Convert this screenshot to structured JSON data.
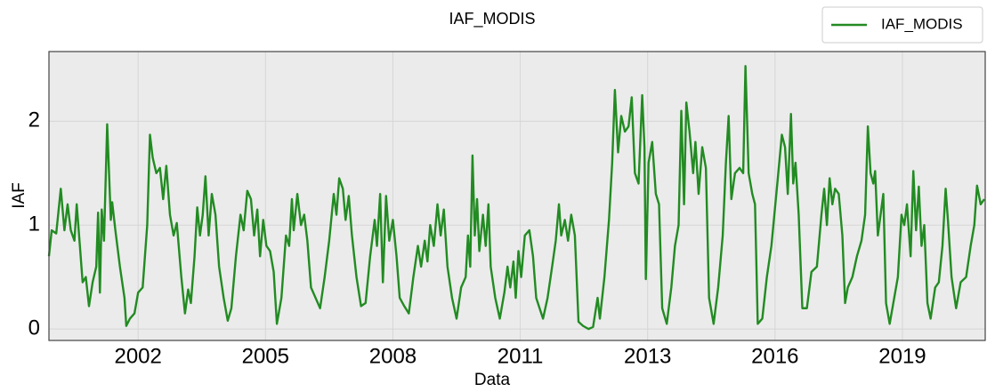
{
  "chart_data": {
    "type": "line",
    "title": "IAF_MODIS",
    "xlabel": "Data",
    "ylabel": "IAF",
    "x": [
      2000.24,
      2000.3,
      2000.4,
      2000.5,
      2000.58,
      2000.65,
      2000.72,
      2000.8,
      2000.85,
      2000.92,
      2000.98,
      2001.05,
      2001.12,
      2001.2,
      2001.28,
      2001.32,
      2001.36,
      2001.4,
      2001.45,
      2001.52,
      2001.6,
      2001.63,
      2001.7,
      2001.8,
      2001.9,
      2001.94,
      2002.02,
      2002.12,
      2002.2,
      2002.3,
      2002.4,
      2002.46,
      2002.52,
      2002.6,
      2002.68,
      2002.75,
      2002.82,
      2002.9,
      2002.98,
      2003.05,
      2003.15,
      2003.23,
      2003.3,
      2003.36,
      2003.44,
      2003.5,
      2003.56,
      2003.62,
      2003.68,
      2003.75,
      2003.82,
      2003.9,
      2003.98,
      2004.08,
      2004.17,
      2004.25,
      2004.35,
      2004.45,
      2004.52,
      2004.6,
      2004.68,
      2004.75,
      2004.82,
      2004.88,
      2004.95,
      2005.02,
      2005.1,
      2005.18,
      2005.25,
      2005.35,
      2005.45,
      2005.52,
      2005.58,
      2005.62,
      2005.7,
      2005.78,
      2005.85,
      2005.92,
      2006.0,
      2006.1,
      2006.2,
      2006.3,
      2006.4,
      2006.5,
      2006.56,
      2006.62,
      2006.7,
      2006.76,
      2006.83,
      2006.9,
      2007.0,
      2007.1,
      2007.2,
      2007.3,
      2007.4,
      2007.45,
      2007.52,
      2007.58,
      2007.65,
      2007.72,
      2007.8,
      2007.88,
      2007.95,
      2008.05,
      2008.15,
      2008.25,
      2008.35,
      2008.42,
      2008.5,
      2008.56,
      2008.62,
      2008.7,
      2008.78,
      2008.85,
      2008.92,
      2009.0,
      2009.1,
      2009.2,
      2009.3,
      2009.4,
      2009.45,
      2009.5,
      2009.55,
      2009.6,
      2009.65,
      2009.7,
      2009.78,
      2009.84,
      2009.9,
      2009.95,
      2010.05,
      2010.15,
      2010.25,
      2010.32,
      2010.38,
      2010.45,
      2010.5,
      2010.56,
      2010.62,
      2010.7,
      2010.8,
      2010.88,
      2010.95,
      2011.1,
      2011.2,
      2011.3,
      2011.38,
      2011.45,
      2011.5,
      2011.58,
      2011.65,
      2011.72,
      2011.8,
      2011.88,
      2011.98,
      2012.1,
      2012.2,
      2012.3,
      2012.35,
      2012.45,
      2012.55,
      2012.62,
      2012.68,
      2012.75,
      2012.82,
      2012.9,
      2012.98,
      2013.05,
      2013.12,
      2013.2,
      2013.28,
      2013.33,
      2013.36,
      2013.42,
      2013.5,
      2013.58,
      2013.65,
      2013.72,
      2013.82,
      2013.92,
      2014.0,
      2014.08,
      2014.14,
      2014.2,
      2014.25,
      2014.32,
      2014.4,
      2014.45,
      2014.52,
      2014.6,
      2014.68,
      2014.75,
      2014.85,
      2014.95,
      2015.05,
      2015.12,
      2015.18,
      2015.24,
      2015.32,
      2015.42,
      2015.5,
      2015.55,
      2015.62,
      2015.7,
      2015.76,
      2015.82,
      2015.92,
      2016.02,
      2016.12,
      2016.25,
      2016.35,
      2016.42,
      2016.48,
      2016.55,
      2016.6,
      2016.65,
      2016.72,
      2016.8,
      2016.9,
      2017.0,
      2017.12,
      2017.22,
      2017.28,
      2017.34,
      2017.4,
      2017.46,
      2017.52,
      2017.6,
      2017.68,
      2017.74,
      2017.8,
      2017.9,
      2018.0,
      2018.1,
      2018.18,
      2018.24,
      2018.3,
      2018.36,
      2018.4,
      2018.46,
      2018.52,
      2018.58,
      2018.64,
      2018.72,
      2018.82,
      2018.9,
      2018.98,
      2019.04,
      2019.1,
      2019.18,
      2019.24,
      2019.3,
      2019.36,
      2019.42,
      2019.48,
      2019.55,
      2019.62,
      2019.72,
      2019.8,
      2019.88,
      2019.95,
      2020.0,
      2020.08,
      2020.18,
      2020.28,
      2020.4,
      2020.5,
      2020.58,
      2020.64,
      2020.72,
      2020.8
    ],
    "series": [
      {
        "name": "IAF_MODIS",
        "color": "#228b22",
        "values": [
          0.7,
          0.95,
          0.92,
          1.35,
          0.95,
          1.2,
          0.95,
          0.85,
          1.2,
          0.8,
          0.45,
          0.5,
          0.22,
          0.45,
          0.6,
          1.12,
          0.35,
          1.15,
          0.85,
          1.97,
          1.05,
          1.22,
          0.95,
          0.6,
          0.3,
          0.03,
          0.1,
          0.15,
          0.35,
          0.4,
          1.0,
          1.87,
          1.65,
          1.5,
          1.55,
          1.25,
          1.57,
          1.1,
          0.9,
          1.02,
          0.5,
          0.15,
          0.38,
          0.25,
          0.7,
          1.17,
          0.9,
          1.1,
          1.47,
          0.9,
          1.3,
          1.1,
          0.6,
          0.3,
          0.08,
          0.2,
          0.7,
          1.1,
          0.95,
          1.33,
          1.25,
          0.9,
          1.15,
          0.7,
          1.05,
          0.8,
          0.75,
          0.55,
          0.05,
          0.3,
          0.9,
          0.8,
          1.25,
          0.95,
          1.3,
          1.0,
          1.1,
          0.85,
          0.4,
          0.3,
          0.2,
          0.5,
          0.85,
          1.3,
          1.1,
          1.45,
          1.35,
          1.05,
          1.28,
          0.9,
          0.5,
          0.22,
          0.25,
          0.7,
          1.05,
          0.8,
          1.3,
          0.45,
          1.28,
          0.85,
          1.05,
          0.7,
          0.3,
          0.22,
          0.15,
          0.5,
          0.8,
          0.6,
          0.85,
          0.65,
          1.0,
          0.8,
          1.2,
          0.9,
          1.15,
          0.6,
          0.3,
          0.1,
          0.4,
          0.5,
          0.9,
          0.6,
          1.67,
          0.9,
          1.25,
          0.75,
          1.1,
          0.8,
          1.2,
          0.6,
          0.3,
          0.1,
          0.35,
          0.6,
          0.4,
          0.65,
          0.3,
          0.75,
          0.5,
          0.9,
          0.95,
          0.7,
          0.3,
          0.1,
          0.3,
          0.6,
          0.85,
          1.2,
          0.9,
          1.05,
          0.85,
          1.1,
          0.9,
          0.07,
          0.03,
          0.0,
          0.02,
          0.3,
          0.1,
          0.5,
          1.05,
          1.6,
          2.3,
          1.7,
          2.05,
          1.9,
          1.95,
          2.23,
          1.5,
          1.4,
          2.25,
          1.75,
          0.48,
          1.6,
          1.8,
          1.3,
          1.2,
          0.2,
          0.05,
          0.4,
          0.8,
          1.0,
          2.1,
          1.2,
          2.18,
          1.9,
          1.5,
          1.8,
          1.3,
          1.75,
          1.55,
          0.3,
          0.05,
          0.4,
          0.9,
          1.6,
          2.05,
          1.25,
          1.5,
          1.55,
          1.5,
          2.53,
          1.5,
          1.3,
          1.2,
          0.05,
          0.1,
          0.5,
          0.8,
          1.4,
          1.87,
          1.75,
          1.3,
          2.07,
          1.4,
          1.6,
          1.1,
          0.2,
          0.2,
          0.55,
          0.6,
          1.1,
          1.35,
          1.0,
          1.45,
          1.2,
          1.35,
          1.3,
          0.9,
          0.25,
          0.4,
          0.5,
          0.7,
          0.85,
          1.1,
          1.95,
          1.5,
          1.4,
          1.52,
          0.9,
          1.1,
          1.3,
          0.25,
          0.05,
          0.3,
          0.5,
          1.1,
          1.0,
          1.2,
          0.7,
          1.52,
          0.95,
          1.37,
          0.8,
          1.0,
          0.25,
          0.1,
          0.4,
          0.45,
          0.8,
          1.35,
          1.05,
          0.5,
          0.2,
          0.45,
          0.5,
          0.8,
          1.0,
          1.38,
          1.2,
          1.25
        ]
      }
    ],
    "xlim": [
      2000.24,
      2020.82
    ],
    "xticks": [
      {
        "value": 2002.2,
        "label": "2002"
      },
      {
        "value": 2005.0,
        "label": "2005"
      },
      {
        "value": 2007.8,
        "label": "2008"
      },
      {
        "value": 2010.6,
        "label": "2011"
      },
      {
        "value": 2013.4,
        "label": "2013"
      },
      {
        "value": 2016.2,
        "label": "2016"
      },
      {
        "value": 2019.0,
        "label": "2019"
      }
    ],
    "ylim": [
      -0.11,
      2.67
    ],
    "yticks": [
      0,
      1,
      2
    ],
    "grid": true,
    "legend": "upper right"
  }
}
